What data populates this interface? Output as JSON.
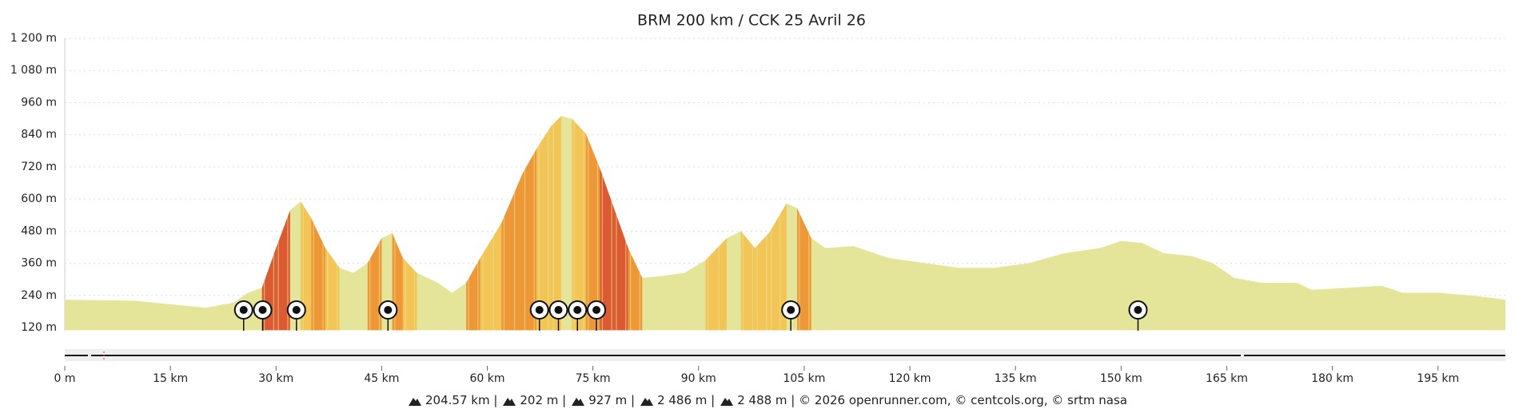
{
  "chart_data": {
    "type": "area",
    "title": "BRM 200 km / CCK 25 Avril 26",
    "x": [
      0,
      10,
      20,
      24,
      26,
      28,
      30,
      32,
      33.5,
      35,
      37,
      39,
      41,
      43,
      45,
      46.5,
      48,
      50,
      53,
      55,
      57,
      59,
      62,
      65,
      67,
      69,
      70.5,
      72,
      74,
      76,
      78,
      80,
      82,
      85,
      88,
      91,
      94,
      96,
      98,
      100,
      102.5,
      104,
      106,
      108,
      112,
      117,
      122,
      127,
      132,
      137,
      142,
      147,
      150,
      153,
      156,
      160,
      163,
      166,
      170,
      175,
      177,
      182,
      187,
      190,
      195,
      200,
      204.57
    ],
    "values": [
      224,
      220,
      194,
      213,
      250,
      268,
      417,
      558,
      591,
      528,
      417,
      343,
      324,
      361,
      454,
      473,
      380,
      324,
      287,
      250,
      287,
      380,
      510,
      695,
      788,
      870,
      910,
      900,
      844,
      714,
      565,
      417,
      306,
      313,
      324,
      372,
      454,
      480,
      417,
      473,
      584,
      565,
      454,
      417,
      424,
      380,
      361,
      343,
      343,
      361,
      398,
      417,
      443,
      436,
      398,
      387,
      361,
      306,
      287,
      287,
      261,
      268,
      276,
      250,
      250,
      239,
      224
    ],
    "color": "#e5e59a",
    "xlim": [
      0,
      204.57
    ],
    "ylim": [
      110,
      1200
    ],
    "yticks": [
      {
        "value": 120,
        "label": "120 m"
      },
      {
        "value": 240,
        "label": "240 m"
      },
      {
        "value": 360,
        "label": "360 m"
      },
      {
        "value": 480,
        "label": "480 m"
      },
      {
        "value": 600,
        "label": "600 m"
      },
      {
        "value": 720,
        "label": "720 m"
      },
      {
        "value": 840,
        "label": "840 m"
      },
      {
        "value": 960,
        "label": "960 m"
      },
      {
        "value": 1080,
        "label": "1 080 m"
      },
      {
        "value": 1200,
        "label": "1 200 m"
      }
    ],
    "xticks": [
      {
        "value": 0,
        "label": "0 m"
      },
      {
        "value": 15,
        "label": "15 km"
      },
      {
        "value": 30,
        "label": "30 km"
      },
      {
        "value": 45,
        "label": "45 km"
      },
      {
        "value": 60,
        "label": "60 km"
      },
      {
        "value": 75,
        "label": "75 km"
      },
      {
        "value": 90,
        "label": "90 km"
      },
      {
        "value": 105,
        "label": "105 km"
      },
      {
        "value": 120,
        "label": "120 km"
      },
      {
        "value": 135,
        "label": "135 km"
      },
      {
        "value": 150,
        "label": "150 km"
      },
      {
        "value": 165,
        "label": "165 km"
      },
      {
        "value": 180,
        "label": "180 km"
      },
      {
        "value": 195,
        "label": "195 km"
      }
    ],
    "grid": true,
    "pois_x": [
      25.4,
      28.1,
      32.9,
      45.9,
      67.4,
      70.1,
      72.8,
      75.5,
      103.1,
      152.4
    ],
    "footer": [
      "204.57 km |",
      "202 m |",
      "927 m |",
      "2 486 m |",
      "2 488 m | © 2026 openrunner.com, © centcols.org, © srtm nasa"
    ]
  }
}
